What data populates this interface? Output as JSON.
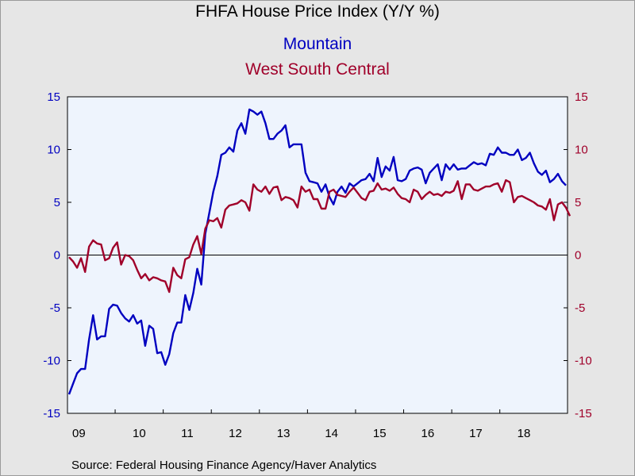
{
  "chart_data": {
    "type": "line",
    "title": "FHFA House Price Index (Y/Y %)",
    "source": "Source:  Federal Housing Finance Agency/Haver Analytics",
    "x_start": "2009-01",
    "x_tick_labels": [
      "09",
      "10",
      "11",
      "12",
      "13",
      "14",
      "15",
      "16",
      "17",
      "18"
    ],
    "y_left_ticks": [
      "15",
      "10",
      "5",
      "0",
      "-5",
      "-10",
      "-15"
    ],
    "y_right_ticks": [
      "15",
      "10",
      "5",
      "0",
      "-5",
      "-10",
      "-15"
    ],
    "ylim": [
      -15,
      15
    ],
    "grid": false,
    "frequency": "monthly",
    "series": [
      {
        "name": "Mountain",
        "color": "#0000c0",
        "axis": "left",
        "values": [
          -13.2,
          -12.2,
          -11.2,
          -10.8,
          -10.8,
          -8.0,
          -5.7,
          -8.0,
          -7.7,
          -7.7,
          -5.1,
          -4.7,
          -4.8,
          -5.5,
          -6.0,
          -6.3,
          -5.7,
          -6.5,
          -6.2,
          -8.6,
          -6.7,
          -7.0,
          -9.3,
          -9.2,
          -10.4,
          -9.4,
          -7.4,
          -6.4,
          -6.4,
          -3.8,
          -5.2,
          -3.6,
          -1.3,
          -2.8,
          2.0,
          4.0,
          6.0,
          7.5,
          9.5,
          9.7,
          10.2,
          9.8,
          11.8,
          12.5,
          11.5,
          13.8,
          13.6,
          13.3,
          13.6,
          12.5,
          11.0,
          11.0,
          11.5,
          11.8,
          12.3,
          10.2,
          10.5,
          10.5,
          10.5,
          7.8,
          7.0,
          6.9,
          6.8,
          6.0,
          6.7,
          5.5,
          4.8,
          6.0,
          6.5,
          5.9,
          6.8,
          6.5,
          6.8,
          7.1,
          7.2,
          7.7,
          7.0,
          9.2,
          7.4,
          8.4,
          8.0,
          9.3,
          7.1,
          7.0,
          7.2,
          8.0,
          8.2,
          8.3,
          8.1,
          6.8,
          7.8,
          8.2,
          8.6,
          7.1,
          8.6,
          8.1,
          8.6,
          8.1,
          8.2,
          8.2,
          8.5,
          8.8,
          8.6,
          8.7,
          8.5,
          9.6,
          9.5,
          10.2,
          9.7,
          9.7,
          9.5,
          9.5,
          10.0,
          9.0,
          9.2,
          9.7,
          8.7,
          7.9,
          7.6,
          8.0,
          6.9,
          7.2,
          7.7,
          7.0,
          6.6
        ]
      },
      {
        "name": "West South Central",
        "color": "#a0002a",
        "axis": "right",
        "values": [
          -0.2,
          -0.6,
          -1.2,
          -0.3,
          -1.6,
          0.8,
          1.4,
          1.1,
          1.0,
          -0.5,
          -0.3,
          0.7,
          1.2,
          -0.9,
          0.0,
          -0.1,
          -0.5,
          -1.4,
          -2.2,
          -1.8,
          -2.4,
          -2.1,
          -2.2,
          -2.4,
          -2.5,
          -3.5,
          -1.2,
          -1.9,
          -2.2,
          -0.4,
          -0.2,
          1.0,
          1.8,
          0.1,
          2.5,
          3.3,
          3.2,
          3.5,
          2.6,
          4.3,
          4.7,
          4.8,
          4.9,
          5.2,
          5.0,
          4.2,
          6.7,
          6.2,
          6.0,
          6.5,
          5.8,
          6.4,
          6.5,
          5.2,
          5.5,
          5.4,
          5.2,
          4.5,
          6.5,
          6.0,
          6.2,
          5.3,
          5.3,
          4.4,
          4.4,
          6.0,
          6.2,
          5.7,
          5.6,
          5.5,
          6.0,
          6.4,
          5.9,
          5.4,
          5.2,
          6.0,
          6.1,
          6.8,
          6.2,
          6.3,
          6.1,
          6.4,
          5.8,
          5.4,
          5.3,
          5.0,
          6.2,
          6.0,
          5.3,
          5.7,
          6.0,
          5.7,
          5.8,
          5.6,
          6.0,
          5.9,
          6.1,
          7.0,
          5.3,
          6.7,
          6.7,
          6.2,
          6.1,
          6.3,
          6.5,
          6.5,
          6.7,
          6.8,
          6.0,
          7.1,
          6.9,
          5.0,
          5.5,
          5.6,
          5.4,
          5.2,
          5.0,
          4.7,
          4.6,
          4.3,
          5.3,
          3.3,
          4.8,
          5.0,
          4.5,
          3.7
        ]
      }
    ]
  }
}
